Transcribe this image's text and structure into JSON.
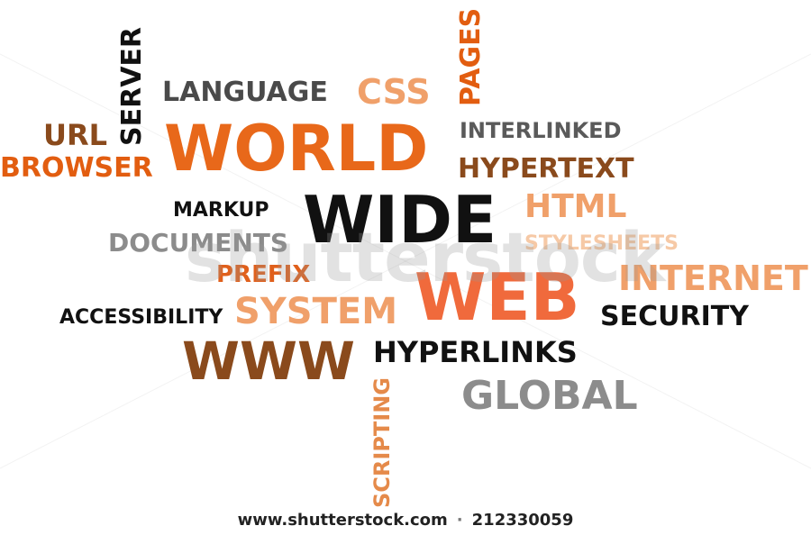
{
  "colors": {
    "dark_orange": "#e25d10",
    "light_orange": "#f0a06a",
    "brown": "#8a4a1c",
    "black": "#111111",
    "grey": "#8c8c8c"
  },
  "words": {
    "server": "SERVER",
    "pages": "PAGES",
    "language": "LANGUAGE",
    "css": "CSS",
    "url": "URL",
    "world": "WORLD",
    "interlinked": "INTERLINKED",
    "browser": "BROWSER",
    "hypertext": "HYPERTEXT",
    "markup": "MARKUP",
    "wide": "WIDE",
    "html": "HTML",
    "documents": "DOCUMENTS",
    "stylesheets": "STYLESHEETS",
    "prefix": "PREFIX",
    "internet": "INTERNET",
    "web": "WEB",
    "accessibility": "ACCESSIBILITY",
    "system": "SYSTEM",
    "security": "SECURITY",
    "www": "WWW",
    "hyperlinks": "HYPERLINKS",
    "global": "GLOBAL",
    "scripting": "SCRIPTING"
  },
  "watermark": {
    "text": "shutterstock"
  },
  "footer": {
    "site": "www.shutterstock.com",
    "separator": "·",
    "image_number": "212330059"
  }
}
